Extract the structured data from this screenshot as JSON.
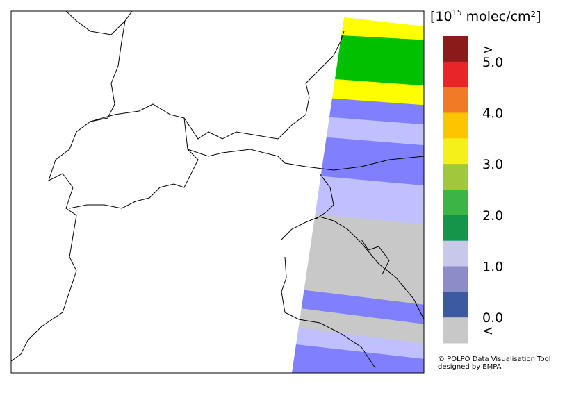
{
  "map": {
    "legend": {
      "title_prefix": "[10",
      "title_exponent": "15",
      "title_suffix": " molec/cm²]",
      "labels": [
        ">",
        "5.0",
        "4.0",
        "3.0",
        "2.0",
        "1.0",
        "0.0",
        "<"
      ],
      "colors": [
        "#8b1a1a",
        "#e8262a",
        "#f07a26",
        "#ffc400",
        "#f5f01a",
        "#a0c83c",
        "#3cb446",
        "#14964a",
        "#c8c8ea",
        "#8c8cc8",
        "#3c5aa0",
        "#c8c8c8"
      ]
    },
    "credit": [
      "© POLPO Data Visualisation Tool",
      "designed by EMPA"
    ]
  }
}
